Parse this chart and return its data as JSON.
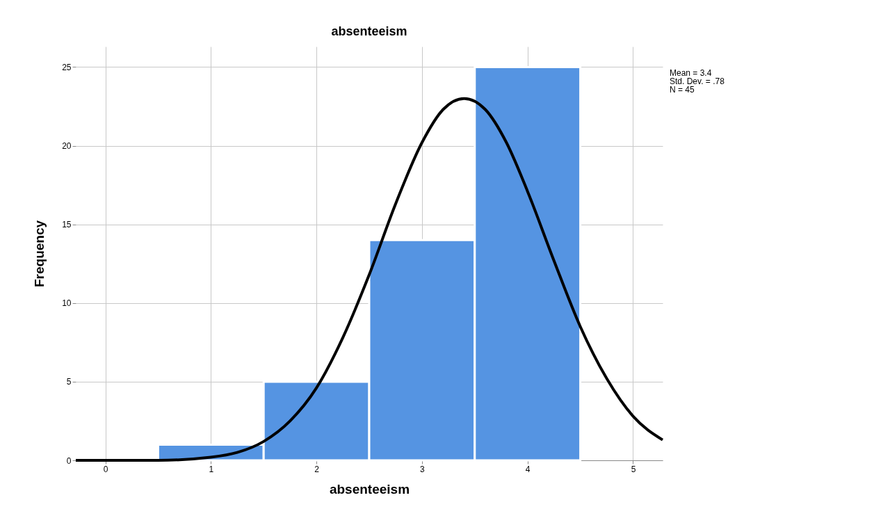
{
  "chart_data": {
    "type": "histogram",
    "title": "absenteeism",
    "xlabel": "absenteeism",
    "ylabel": "Frequency",
    "bins": [
      0.5,
      1.5,
      2.5,
      3.5,
      4.5
    ],
    "values": [
      1,
      5,
      14,
      25
    ],
    "color": "#5594e2",
    "series": [
      {
        "type": "line",
        "color": "#000000",
        "x": [
          -0.28,
          0,
          0.5,
          1,
          1.25,
          1.5,
          1.75,
          2,
          2.25,
          2.5,
          2.75,
          3,
          3.2,
          3.4,
          3.6,
          3.8,
          4,
          4.25,
          4.5,
          4.75,
          5,
          5.28
        ],
        "values": [
          0,
          0,
          0,
          0.2,
          0.5,
          1.2,
          2.5,
          4.6,
          7.8,
          11.8,
          16.3,
          20.2,
          22.3,
          23,
          22.3,
          20.2,
          17.1,
          12.7,
          8.5,
          5.2,
          2.8,
          1.3
        ]
      }
    ],
    "xlim": [
      -0.28,
      5.28
    ],
    "xticks": [
      0,
      1,
      2,
      3,
      4,
      5
    ],
    "ylim": [
      0,
      26.3
    ],
    "yticks": [
      0,
      5,
      10,
      15,
      20,
      25
    ],
    "grid": true,
    "line_style": "solid",
    "annotations": [
      "Mean = 3.4",
      "Std. Dev. = .78",
      "N = 45"
    ]
  }
}
